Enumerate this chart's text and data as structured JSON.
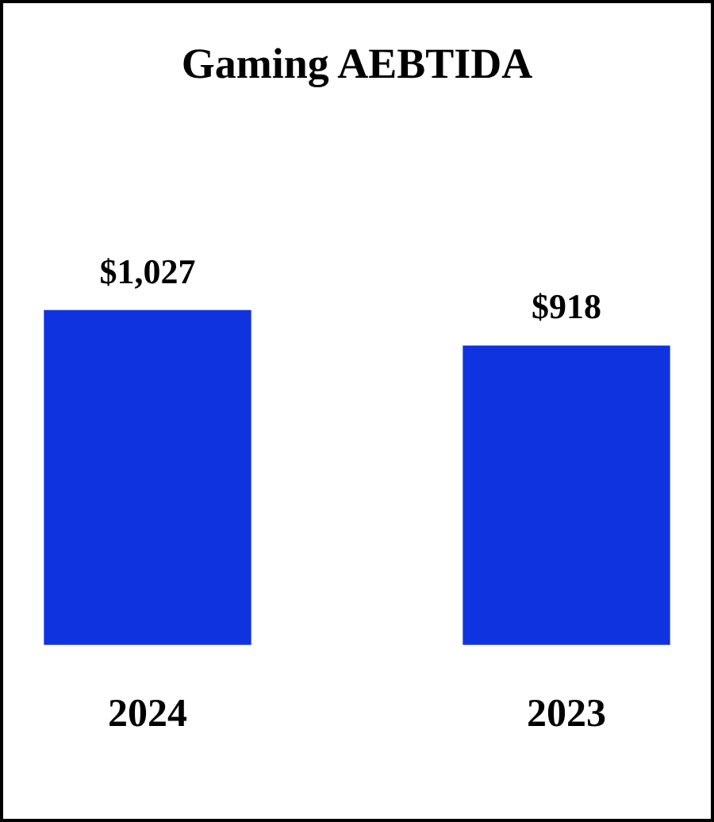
{
  "chart_data": {
    "type": "bar",
    "title": "Gaming AEBTIDA",
    "categories": [
      "2024",
      "2023"
    ],
    "values": [
      1027,
      918
    ],
    "value_labels": [
      "$1,027",
      "$918"
    ],
    "color": "#1033e0",
    "grid": false,
    "legend": false
  }
}
